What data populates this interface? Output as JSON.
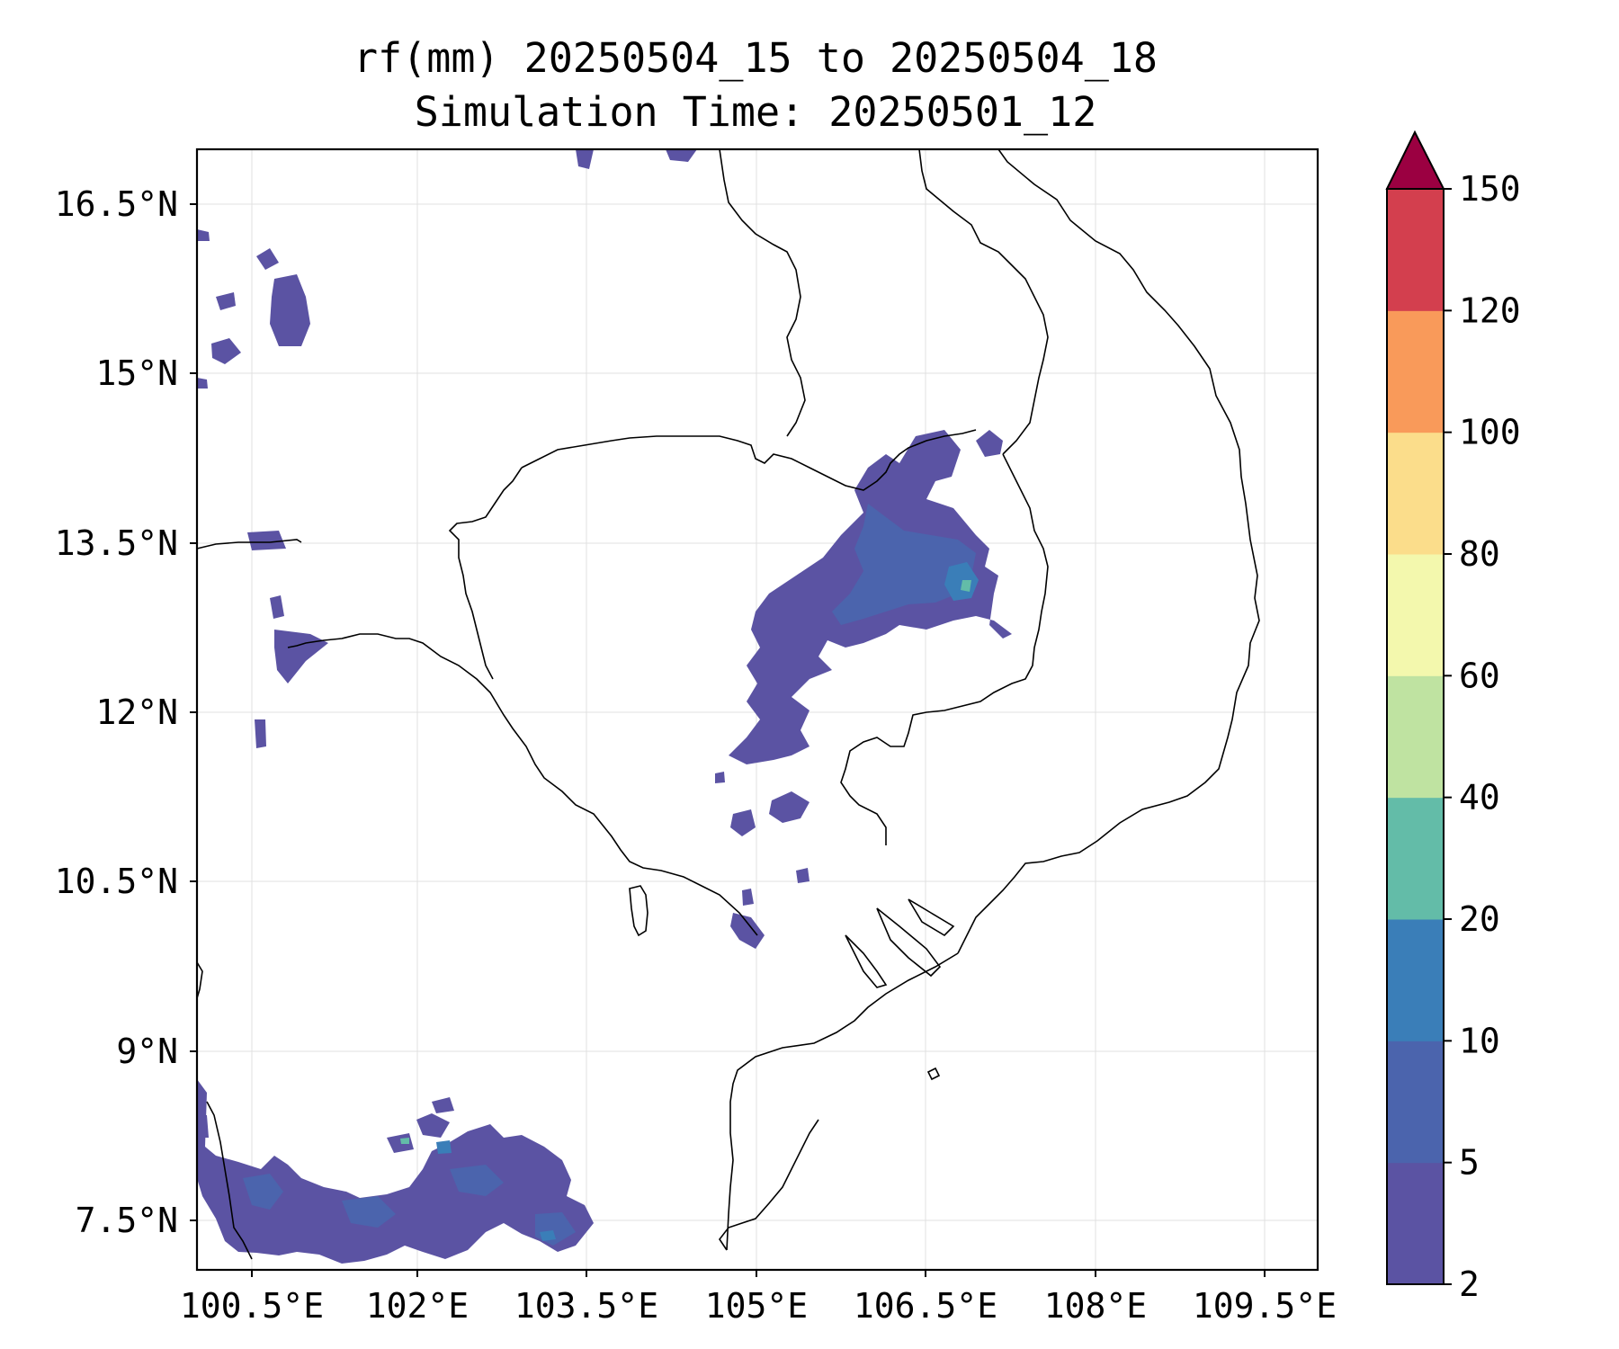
{
  "map": {
    "title_line1": "rf(mm) 20250504_15 to 20250504_18",
    "title_line2": "Simulation Time: 20250501_12",
    "lon_ticks": [
      "100.5°E",
      "102°E",
      "103.5°E",
      "105°E",
      "106.5°E",
      "108°E",
      "109.5°E"
    ],
    "lat_ticks": [
      "16.5°N",
      "15°N",
      "13.5°N",
      "12°N",
      "10.5°N",
      "9°N",
      "7.5°N"
    ],
    "colors": {
      "rain_main": "#5b53a3",
      "rain_mid": "#4b64ad",
      "rain_heavy": "#3a7eb8",
      "rain_peak": "#63bca8",
      "coastline": "#000000"
    }
  },
  "colorbar": {
    "tick_labels": [
      "2",
      "5",
      "10",
      "20",
      "40",
      "60",
      "80",
      "100",
      "120",
      "150"
    ],
    "bins": [
      {
        "from": "2",
        "to": "5",
        "color": "#5b53a3"
      },
      {
        "from": "5",
        "to": "10",
        "color": "#4b64ad"
      },
      {
        "from": "10",
        "to": "20",
        "color": "#3a7eb8"
      },
      {
        "from": "20",
        "to": "40",
        "color": "#63bca8"
      },
      {
        "from": "40",
        "to": "60",
        "color": "#bfe3a1"
      },
      {
        "from": "60",
        "to": "80",
        "color": "#f3f8ad"
      },
      {
        "from": "80",
        "to": "100",
        "color": "#fbdd8b"
      },
      {
        "from": "100",
        "to": "120",
        "color": "#f99a5a"
      },
      {
        "from": "120",
        "to": "150",
        "color": "#d33f4e"
      }
    ],
    "extend_color": "#9b0041"
  }
}
